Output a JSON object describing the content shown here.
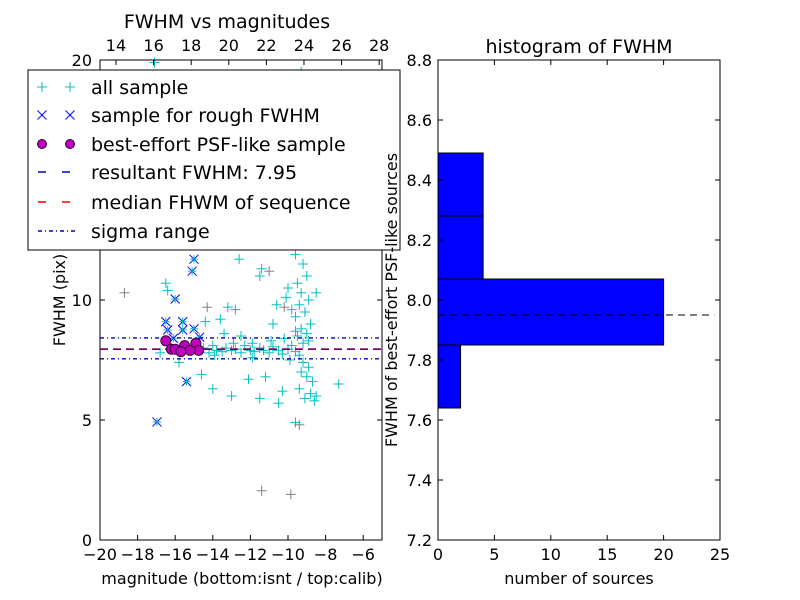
{
  "chart_data": [
    {
      "type": "scatter",
      "title": "FWHM vs magnitudes",
      "xlabel": "magnitude (bottom:isnt / top:calib)",
      "ylabel": "FWHM (pix)",
      "xlim": [
        -20,
        -5
      ],
      "ylim": [
        0,
        20
      ],
      "top_xlim": [
        13.15,
        28.15
      ],
      "xticks": [
        "−20",
        "−18",
        "−16",
        "−14",
        "−12",
        "−10",
        "−8",
        "−6"
      ],
      "xtick_values": [
        -20,
        -18,
        -16,
        -14,
        -12,
        -10,
        -8,
        -6
      ],
      "top_xticks": [
        "14",
        "16",
        "18",
        "20",
        "22",
        "24",
        "26",
        "28"
      ],
      "top_xtick_values": [
        14,
        16,
        18,
        20,
        22,
        24,
        26,
        28
      ],
      "yticks": [
        "0",
        "5",
        "10",
        "15",
        "20"
      ],
      "ytick_values": [
        0,
        5,
        10,
        15,
        20
      ],
      "legend_placement": "upper-left",
      "legend": [
        "all sample",
        "sample for rough FWHM",
        "best-effort PSF-like sample",
        "resultant FWHM: 7.95",
        "median FHWM of sequence",
        "sigma range"
      ],
      "colors": {
        "all": "#00bfbf",
        "rough": "#0000ff",
        "best": "#bf00bf",
        "resultant": "#0000bf",
        "median": "#ff0000",
        "sigma": "#0000bf",
        "gray": "#808080"
      },
      "resultant_fwhm": 7.95,
      "median_fwhm": 7.95,
      "sigma_range": [
        7.55,
        8.42
      ],
      "series": [
        {
          "name": "rejected sample",
          "marker": "+",
          "color": "#808080",
          "points": [
            [
              -11.4,
              2.05
            ],
            [
              -9.85,
              1.9
            ],
            [
              -9.4,
              4.8
            ],
            [
              -11.0,
              11.2
            ],
            [
              -9.5,
              13.5
            ],
            [
              -10.2,
              9.7
            ],
            [
              -14.3,
              9.7
            ],
            [
              -18.7,
              10.3
            ]
          ]
        },
        {
          "name": "all sample",
          "marker": "+",
          "color": "#00bfbf",
          "points": [
            [
              -14.8,
              7.9
            ],
            [
              -14.5,
              8.0
            ],
            [
              -14.2,
              7.8
            ],
            [
              -14,
              8.1
            ],
            [
              -13.8,
              7.9
            ],
            [
              -13.5,
              7.85
            ],
            [
              -13.3,
              8.0
            ],
            [
              -13,
              7.9
            ],
            [
              -12.8,
              7.95
            ],
            [
              -12.5,
              7.8
            ],
            [
              -12.3,
              8.1
            ],
            [
              -12,
              7.9
            ],
            [
              -11.8,
              7.85
            ],
            [
              -11.5,
              8.0
            ],
            [
              -11.3,
              7.9
            ],
            [
              -11,
              7.8
            ],
            [
              -10.8,
              8.05
            ],
            [
              -10.5,
              7.9
            ],
            [
              -10.3,
              7.75
            ],
            [
              -10,
              7.95
            ],
            [
              -9.8,
              8.1
            ],
            [
              -9.6,
              7.85
            ],
            [
              -9.4,
              7.7
            ],
            [
              -9.2,
              8.2
            ],
            [
              -13.9,
              7.7
            ],
            [
              -12.9,
              8.2
            ],
            [
              -11.9,
              7.6
            ],
            [
              -10.9,
              8.3
            ],
            [
              -10.2,
              8.4
            ],
            [
              -9.9,
              7.5
            ],
            [
              -9.3,
              19.5
            ],
            [
              -9.1,
              18.2
            ],
            [
              -9.5,
              16.8
            ],
            [
              -9.2,
              15.5
            ],
            [
              -9.6,
              14.7
            ],
            [
              -9.0,
              14.0
            ],
            [
              -9.4,
              13.3
            ],
            [
              -9.3,
              12.8
            ],
            [
              -9.1,
              12.3
            ],
            [
              -9.6,
              11.9
            ],
            [
              -9.2,
              11.5
            ],
            [
              -9.0,
              11.0
            ],
            [
              -9.5,
              10.7
            ],
            [
              -9.3,
              10.3
            ],
            [
              -8.9,
              10.0
            ],
            [
              -9.4,
              9.8
            ],
            [
              -9.1,
              9.5
            ],
            [
              -9.6,
              9.3
            ],
            [
              -8.8,
              9.0
            ],
            [
              -9.3,
              8.8
            ],
            [
              -9.0,
              8.6
            ],
            [
              -9.5,
              8.5
            ],
            [
              -8.9,
              8.3
            ],
            [
              -9.2,
              7.4
            ],
            [
              -8.9,
              7.2
            ],
            [
              -9.3,
              7.0
            ],
            [
              -9.0,
              6.8
            ],
            [
              -8.7,
              6.6
            ],
            [
              -9.4,
              6.3
            ],
            [
              -8.8,
              6.1
            ],
            [
              -9.1,
              5.9
            ],
            [
              -8.6,
              5.8
            ],
            [
              -9.6,
              8.7
            ],
            [
              -9.8,
              9.6
            ],
            [
              -10.1,
              10.1
            ],
            [
              -8.5,
              10.3
            ],
            [
              -9.7,
              12.4
            ],
            [
              -9.9,
              13.1
            ],
            [
              -16.5,
              10.7
            ],
            [
              -16.4,
              10.4
            ],
            [
              -12.6,
              11.7
            ],
            [
              -11.5,
              11.0
            ],
            [
              -11.4,
              11.3
            ],
            [
              -13.2,
              9.7
            ],
            [
              -12.8,
              9.6
            ],
            [
              -13.4,
              8.6
            ],
            [
              -12.5,
              8.5
            ],
            [
              -11.9,
              8.2
            ],
            [
              -12.1,
              6.7
            ],
            [
              -11.2,
              6.8
            ],
            [
              -13.0,
              6.0
            ],
            [
              -11.5,
              5.9
            ],
            [
              -10.5,
              5.7
            ],
            [
              -10.6,
              9.8
            ],
            [
              -10.8,
              9.0
            ],
            [
              -10.3,
              6.2
            ],
            [
              -7.3,
              6.5
            ],
            [
              -8.5,
              6.0
            ],
            [
              -9.6,
              4.9
            ],
            [
              -16.2,
              8.0
            ],
            [
              -16.8,
              7.8
            ],
            [
              -14.6,
              6.9
            ],
            [
              -14.0,
              6.3
            ],
            [
              -15.8,
              7.4
            ],
            [
              -14.4,
              9.1
            ],
            [
              -13.6,
              9.2
            ],
            [
              -10.0,
              10.5
            ],
            [
              -17.1,
              19.9
            ]
          ]
        },
        {
          "name": "sample for rough FWHM",
          "marker": "x",
          "color": "#0000ff",
          "points": [
            [
              -16.97,
              4.92
            ],
            [
              -16.0,
              10.04
            ],
            [
              -15.0,
              11.7
            ],
            [
              -15.1,
              11.2
            ],
            [
              -16.5,
              9.1
            ],
            [
              -15.6,
              9.1
            ],
            [
              -16.4,
              8.75
            ],
            [
              -15.6,
              8.75
            ],
            [
              -15.0,
              8.8
            ],
            [
              -15.4,
              6.6
            ],
            [
              -14.7,
              8.45
            ],
            [
              -16.1,
              8.4
            ]
          ]
        },
        {
          "name": "best-effort PSF-like sample",
          "marker": "o",
          "color": "#bf00bf",
          "points": [
            [
              -16.5,
              8.3
            ],
            [
              -16.2,
              7.95
            ],
            [
              -16.0,
              7.95
            ],
            [
              -15.6,
              7.95
            ],
            [
              -15.5,
              8.1
            ],
            [
              -14.9,
              8.2
            ],
            [
              -14.75,
              7.9
            ],
            [
              -15.2,
              7.9
            ],
            [
              -15.7,
              7.85
            ]
          ]
        }
      ]
    },
    {
      "type": "bar",
      "orientation": "horizontal",
      "title": "histogram of FWHM",
      "xlabel": "number of sources",
      "ylabel": "FWHM of best-effort PSF-like sources",
      "xlim": [
        0,
        25
      ],
      "ylim": [
        7.2,
        8.8
      ],
      "xticks": [
        "0",
        "5",
        "10",
        "15",
        "20",
        "25"
      ],
      "xtick_values": [
        0,
        5,
        10,
        15,
        20,
        25
      ],
      "yticks": [
        "7.2",
        "7.4",
        "7.6",
        "7.8",
        "8.0",
        "8.2",
        "8.4",
        "8.6",
        "8.8"
      ],
      "ytick_values": [
        7.2,
        7.4,
        7.6,
        7.8,
        8.0,
        8.2,
        8.4,
        8.6,
        8.8
      ],
      "bin_edges": [
        7.64,
        7.85,
        8.07,
        8.28,
        8.49
      ],
      "values": [
        2,
        20,
        4,
        4
      ],
      "bar_color": "#0000ff",
      "reference_line": {
        "y": 7.95,
        "x_extent": [
          0,
          24.5
        ],
        "style": "dashed",
        "color": "#000000"
      }
    }
  ]
}
